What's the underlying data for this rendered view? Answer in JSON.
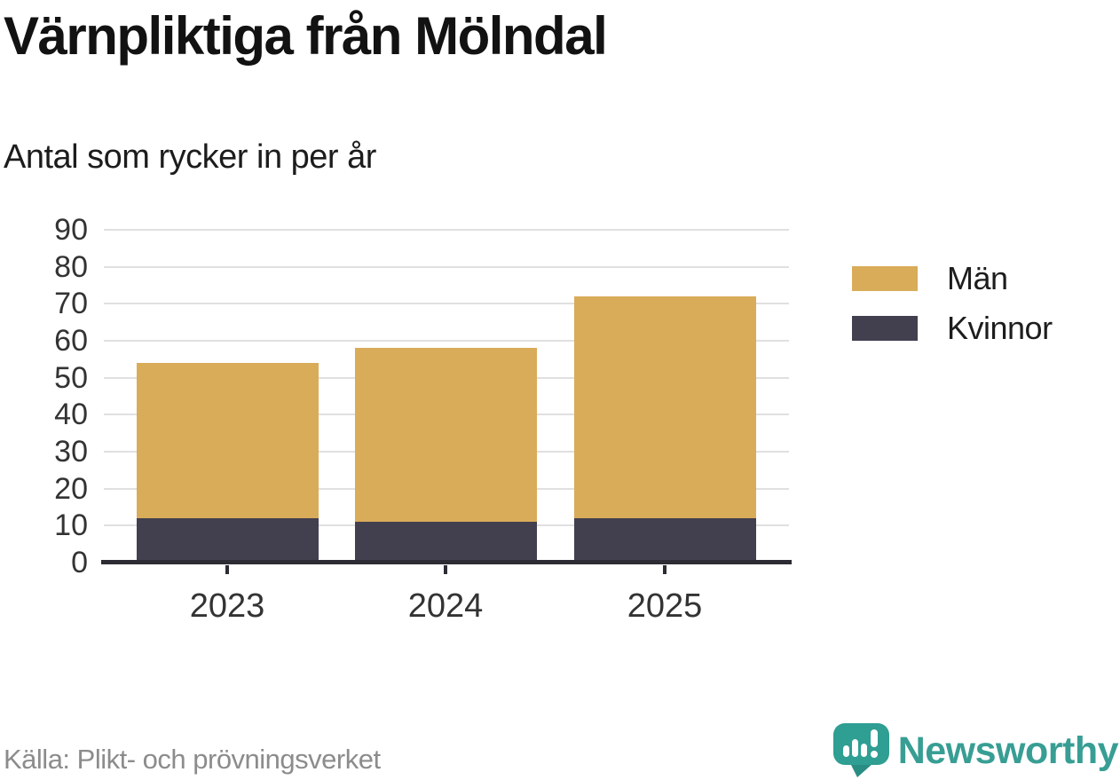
{
  "chart": {
    "title": "Värnpliktiga från Mölndal",
    "subtitle": "Antal som rycker in per år"
  },
  "chart_data": {
    "type": "bar",
    "stacked": true,
    "title": "Värnpliktiga från Mölndal",
    "subtitle": "Antal som rycker in per år",
    "categories": [
      "2023",
      "2024",
      "2025"
    ],
    "series": [
      {
        "name": "Kvinnor",
        "color": "#423f4f",
        "values": [
          12,
          11,
          12
        ]
      },
      {
        "name": "Män",
        "color": "#d9ac5a",
        "values": [
          42,
          47,
          60
        ]
      }
    ],
    "stack_totals": [
      54,
      58,
      72
    ],
    "xlabel": "",
    "ylabel": "",
    "ylim": [
      0,
      90
    ],
    "yticks": [
      0,
      10,
      20,
      30,
      40,
      50,
      60,
      70,
      80,
      90
    ],
    "grid": true,
    "legend_position": "right",
    "legend": [
      {
        "label": "Män",
        "color": "#d9ac5a"
      },
      {
        "label": "Kvinnor",
        "color": "#423f4f"
      }
    ]
  },
  "footer": {
    "source": "Källa: Plikt- och prövningsverket",
    "brand": "Newsworthy"
  },
  "colors": {
    "men": "#d9ac5a",
    "women": "#423f4f",
    "gridline": "#e0e0e0",
    "axis": "#2d2b33",
    "brand_teal": "#389e94"
  }
}
